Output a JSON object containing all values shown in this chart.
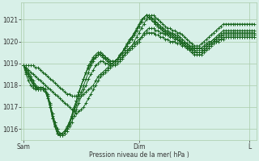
{
  "bg_color": "#d8f0e8",
  "grid_color": "#aaccaa",
  "line_color": "#1a6620",
  "xlabel": "Pression niveau de la mer( hPa )",
  "ylim": [
    1015.5,
    1021.8
  ],
  "yticks": [
    1016,
    1017,
    1018,
    1019,
    1020,
    1021
  ],
  "xtick_labels": [
    "Sam",
    "Dim",
    "L"
  ],
  "xtick_pos": [
    0,
    48,
    94
  ],
  "total_points": 97,
  "series": [
    [
      1018.9,
      1018.7,
      1018.5,
      1018.3,
      1018.1,
      1017.9,
      1017.8,
      1017.8,
      1017.8,
      1017.8,
      1017.5,
      1017.0,
      1016.5,
      1016.1,
      1015.8,
      1015.7,
      1015.7,
      1015.8,
      1015.9,
      1016.1,
      1016.3,
      1016.6,
      1016.9,
      1017.2,
      1017.5,
      1017.8,
      1018.0,
      1018.3,
      1018.5,
      1018.7,
      1018.9,
      1019.0,
      1019.1,
      1019.1,
      1019.0,
      1019.0,
      1018.9,
      1018.9,
      1018.9,
      1019.0,
      1019.1,
      1019.2,
      1019.4,
      1019.5,
      1019.7,
      1019.8,
      1020.0,
      1020.2,
      1020.4,
      1020.6,
      1020.8,
      1021.0,
      1021.1,
      1021.2,
      1021.2,
      1021.1,
      1021.0,
      1020.9,
      1020.8,
      1020.7,
      1020.6,
      1020.6,
      1020.5,
      1020.5,
      1020.4,
      1020.4,
      1020.3,
      1020.2,
      1020.1,
      1020.0,
      1019.9,
      1019.8,
      1019.8,
      1019.8,
      1019.9,
      1020.0,
      1020.1,
      1020.2,
      1020.3,
      1020.4,
      1020.5,
      1020.6,
      1020.7,
      1020.8,
      1020.8,
      1020.8,
      1020.8,
      1020.8,
      1020.8,
      1020.8,
      1020.8,
      1020.8,
      1020.8,
      1020.8,
      1020.8,
      1020.8,
      1020.8
    ],
    [
      1018.9,
      1018.6,
      1018.4,
      1018.2,
      1018.0,
      1017.9,
      1017.9,
      1017.9,
      1017.9,
      1017.8,
      1017.5,
      1017.1,
      1016.6,
      1016.2,
      1015.9,
      1015.7,
      1015.7,
      1015.8,
      1016.0,
      1016.2,
      1016.5,
      1016.8,
      1017.1,
      1017.4,
      1017.7,
      1018.0,
      1018.3,
      1018.6,
      1018.9,
      1019.1,
      1019.3,
      1019.4,
      1019.5,
      1019.4,
      1019.3,
      1019.2,
      1019.1,
      1019.1,
      1019.1,
      1019.2,
      1019.3,
      1019.5,
      1019.6,
      1019.8,
      1020.0,
      1020.1,
      1020.3,
      1020.5,
      1020.7,
      1020.9,
      1021.1,
      1021.2,
      1021.2,
      1021.1,
      1021.0,
      1020.9,
      1020.8,
      1020.7,
      1020.6,
      1020.5,
      1020.5,
      1020.4,
      1020.4,
      1020.3,
      1020.3,
      1020.2,
      1020.1,
      1020.0,
      1019.9,
      1019.8,
      1019.7,
      1019.6,
      1019.6,
      1019.6,
      1019.6,
      1019.7,
      1019.8,
      1019.9,
      1020.0,
      1020.1,
      1020.2,
      1020.3,
      1020.4,
      1020.5,
      1020.5,
      1020.5,
      1020.5,
      1020.5,
      1020.5,
      1020.5,
      1020.5,
      1020.5,
      1020.5,
      1020.5,
      1020.5,
      1020.5,
      1020.5
    ],
    [
      1018.9,
      1018.7,
      1018.5,
      1018.3,
      1018.1,
      1017.9,
      1017.8,
      1017.8,
      1017.8,
      1017.7,
      1017.5,
      1017.1,
      1016.7,
      1016.3,
      1016.0,
      1015.8,
      1015.8,
      1015.9,
      1016.0,
      1016.3,
      1016.6,
      1017.0,
      1017.3,
      1017.7,
      1018.0,
      1018.3,
      1018.6,
      1018.8,
      1019.0,
      1019.2,
      1019.3,
      1019.4,
      1019.4,
      1019.3,
      1019.2,
      1019.1,
      1019.0,
      1019.0,
      1019.1,
      1019.2,
      1019.3,
      1019.5,
      1019.7,
      1019.8,
      1020.0,
      1020.2,
      1020.3,
      1020.5,
      1020.7,
      1020.9,
      1021.1,
      1021.2,
      1021.2,
      1021.1,
      1021.0,
      1020.9,
      1020.8,
      1020.7,
      1020.6,
      1020.5,
      1020.4,
      1020.4,
      1020.3,
      1020.3,
      1020.2,
      1020.1,
      1020.0,
      1019.9,
      1019.8,
      1019.7,
      1019.6,
      1019.6,
      1019.5,
      1019.5,
      1019.5,
      1019.6,
      1019.7,
      1019.8,
      1019.9,
      1020.0,
      1020.1,
      1020.2,
      1020.3,
      1020.4,
      1020.4,
      1020.4,
      1020.4,
      1020.4,
      1020.4,
      1020.4,
      1020.4,
      1020.4,
      1020.4,
      1020.4,
      1020.4,
      1020.4,
      1020.4
    ],
    [
      1018.9,
      1018.8,
      1018.6,
      1018.4,
      1018.2,
      1018.0,
      1017.9,
      1017.9,
      1017.9,
      1017.8,
      1017.6,
      1017.2,
      1016.7,
      1016.3,
      1016.0,
      1015.8,
      1015.8,
      1015.9,
      1016.1,
      1016.3,
      1016.6,
      1017.0,
      1017.3,
      1017.7,
      1018.0,
      1018.3,
      1018.6,
      1018.8,
      1019.0,
      1019.2,
      1019.3,
      1019.4,
      1019.4,
      1019.3,
      1019.2,
      1019.1,
      1019.0,
      1019.0,
      1019.1,
      1019.2,
      1019.4,
      1019.5,
      1019.7,
      1019.9,
      1020.0,
      1020.2,
      1020.4,
      1020.5,
      1020.7,
      1020.9,
      1021.1,
      1021.2,
      1021.1,
      1021.0,
      1020.9,
      1020.8,
      1020.7,
      1020.6,
      1020.5,
      1020.4,
      1020.4,
      1020.3,
      1020.3,
      1020.2,
      1020.1,
      1020.0,
      1019.9,
      1019.8,
      1019.7,
      1019.7,
      1019.6,
      1019.5,
      1019.5,
      1019.5,
      1019.5,
      1019.6,
      1019.7,
      1019.8,
      1019.9,
      1020.0,
      1020.1,
      1020.2,
      1020.2,
      1020.3,
      1020.3,
      1020.3,
      1020.3,
      1020.3,
      1020.3,
      1020.3,
      1020.3,
      1020.3,
      1020.3,
      1020.3,
      1020.3,
      1020.3,
      1020.3
    ],
    [
      1018.9,
      1018.5,
      1018.2,
      1018.0,
      1017.9,
      1017.8,
      1017.8,
      1017.8,
      1017.8,
      1017.7,
      1017.4,
      1017.0,
      1016.5,
      1016.1,
      1015.8,
      1015.7,
      1015.7,
      1015.8,
      1016.0,
      1016.2,
      1016.5,
      1016.9,
      1017.3,
      1017.6,
      1018.0,
      1018.3,
      1018.6,
      1018.9,
      1019.1,
      1019.3,
      1019.4,
      1019.5,
      1019.5,
      1019.4,
      1019.3,
      1019.2,
      1019.1,
      1019.1,
      1019.1,
      1019.2,
      1019.4,
      1019.5,
      1019.7,
      1019.9,
      1020.1,
      1020.2,
      1020.4,
      1020.6,
      1020.8,
      1021.0,
      1021.1,
      1021.2,
      1021.1,
      1021.0,
      1020.9,
      1020.8,
      1020.7,
      1020.6,
      1020.5,
      1020.4,
      1020.3,
      1020.3,
      1020.2,
      1020.2,
      1020.1,
      1020.0,
      1019.9,
      1019.8,
      1019.7,
      1019.6,
      1019.5,
      1019.4,
      1019.4,
      1019.4,
      1019.4,
      1019.5,
      1019.6,
      1019.7,
      1019.8,
      1019.9,
      1020.0,
      1020.0,
      1020.1,
      1020.1,
      1020.2,
      1020.2,
      1020.2,
      1020.2,
      1020.2,
      1020.2,
      1020.2,
      1020.2,
      1020.2,
      1020.2,
      1020.2,
      1020.2,
      1020.2
    ],
    [
      1018.9,
      1018.8,
      1018.7,
      1018.6,
      1018.5,
      1018.4,
      1018.3,
      1018.2,
      1018.1,
      1018.0,
      1017.9,
      1017.8,
      1017.7,
      1017.6,
      1017.5,
      1017.4,
      1017.3,
      1017.2,
      1017.1,
      1017.0,
      1016.9,
      1016.8,
      1016.7,
      1016.8,
      1016.9,
      1017.0,
      1017.2,
      1017.4,
      1017.6,
      1017.8,
      1018.0,
      1018.2,
      1018.4,
      1018.5,
      1018.6,
      1018.7,
      1018.8,
      1018.9,
      1019.0,
      1019.1,
      1019.2,
      1019.3,
      1019.4,
      1019.5,
      1019.6,
      1019.7,
      1019.8,
      1019.9,
      1020.0,
      1020.2,
      1020.4,
      1020.5,
      1020.6,
      1020.6,
      1020.6,
      1020.5,
      1020.5,
      1020.4,
      1020.4,
      1020.3,
      1020.3,
      1020.2,
      1020.2,
      1020.1,
      1020.1,
      1020.0,
      1020.0,
      1019.9,
      1019.9,
      1019.8,
      1019.8,
      1019.7,
      1019.7,
      1019.7,
      1019.7,
      1019.8,
      1019.9,
      1020.0,
      1020.0,
      1020.1,
      1020.1,
      1020.2,
      1020.2,
      1020.3,
      1020.3,
      1020.3,
      1020.3,
      1020.3,
      1020.3,
      1020.3,
      1020.3,
      1020.3,
      1020.3,
      1020.3,
      1020.3,
      1020.3,
      1020.3
    ],
    [
      1018.9,
      1018.9,
      1018.9,
      1018.9,
      1018.9,
      1018.8,
      1018.8,
      1018.7,
      1018.6,
      1018.5,
      1018.4,
      1018.3,
      1018.2,
      1018.1,
      1018.0,
      1017.9,
      1017.8,
      1017.7,
      1017.6,
      1017.6,
      1017.5,
      1017.5,
      1017.5,
      1017.5,
      1017.5,
      1017.6,
      1017.7,
      1017.8,
      1017.9,
      1018.0,
      1018.2,
      1018.4,
      1018.5,
      1018.6,
      1018.7,
      1018.8,
      1018.9,
      1019.0,
      1019.1,
      1019.2,
      1019.3,
      1019.4,
      1019.5,
      1019.6,
      1019.7,
      1019.8,
      1019.9,
      1020.0,
      1020.1,
      1020.2,
      1020.3,
      1020.4,
      1020.4,
      1020.4,
      1020.4,
      1020.3,
      1020.3,
      1020.2,
      1020.2,
      1020.1,
      1020.1,
      1020.0,
      1020.0,
      1020.0,
      1019.9,
      1019.9,
      1019.8,
      1019.8,
      1019.8,
      1019.7,
      1019.7,
      1019.7,
      1019.7,
      1019.7,
      1019.7,
      1019.8,
      1019.8,
      1019.9,
      1019.9,
      1020.0,
      1020.0,
      1020.1,
      1020.1,
      1020.2,
      1020.2,
      1020.2,
      1020.2,
      1020.2,
      1020.2,
      1020.2,
      1020.2,
      1020.2,
      1020.2,
      1020.2,
      1020.2,
      1020.2,
      1020.2
    ]
  ]
}
